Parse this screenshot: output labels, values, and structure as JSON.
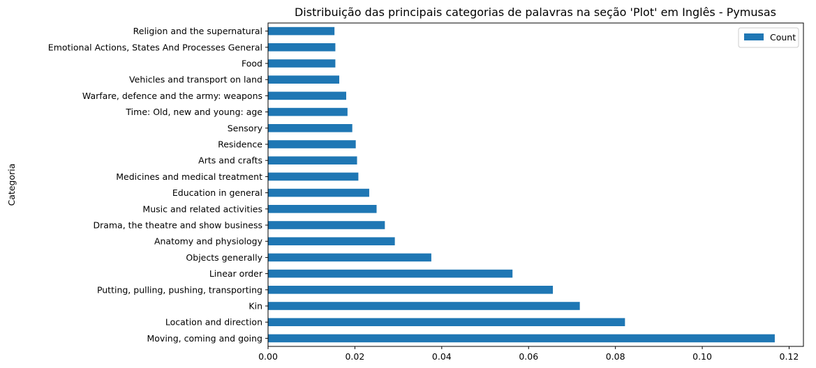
{
  "chart_data": {
    "type": "bar",
    "orientation": "horizontal",
    "title": "Distribuição das principais categorias de palavras na seção 'Plot' em Inglês - Pymusas",
    "xlabel": "",
    "ylabel": "Categoria",
    "xlim": [
      0,
      0.1233
    ],
    "xticks": [
      "0.00",
      "0.02",
      "0.04",
      "0.06",
      "0.08",
      "0.10",
      "0.12"
    ],
    "grid": false,
    "legend": "top-right",
    "bar_color": "#1f77b4",
    "categories": [
      "Moving, coming and going",
      "Location and direction",
      "Kin",
      "Putting, pulling, pushing, transporting",
      "Linear order",
      "Objects generally",
      "Anatomy and physiology",
      "Drama, the theatre and show business",
      "Music and related activities",
      "Education in general",
      "Medicines and medical treatment",
      "Arts and crafts",
      "Residence",
      "Sensory",
      "Time: Old, new and young: age",
      "Warfare, defence and the army: weapons",
      "Vehicles and transport on land",
      "Food",
      "Emotional Actions, States And Processes General",
      "Religion and the supernatural"
    ],
    "series": [
      {
        "name": "Count",
        "values": [
          0.1167,
          0.0822,
          0.0718,
          0.0656,
          0.0563,
          0.0376,
          0.0292,
          0.0269,
          0.025,
          0.0233,
          0.0208,
          0.0205,
          0.0202,
          0.0194,
          0.0183,
          0.018,
          0.0164,
          0.0155,
          0.0155,
          0.0153
        ]
      }
    ]
  }
}
